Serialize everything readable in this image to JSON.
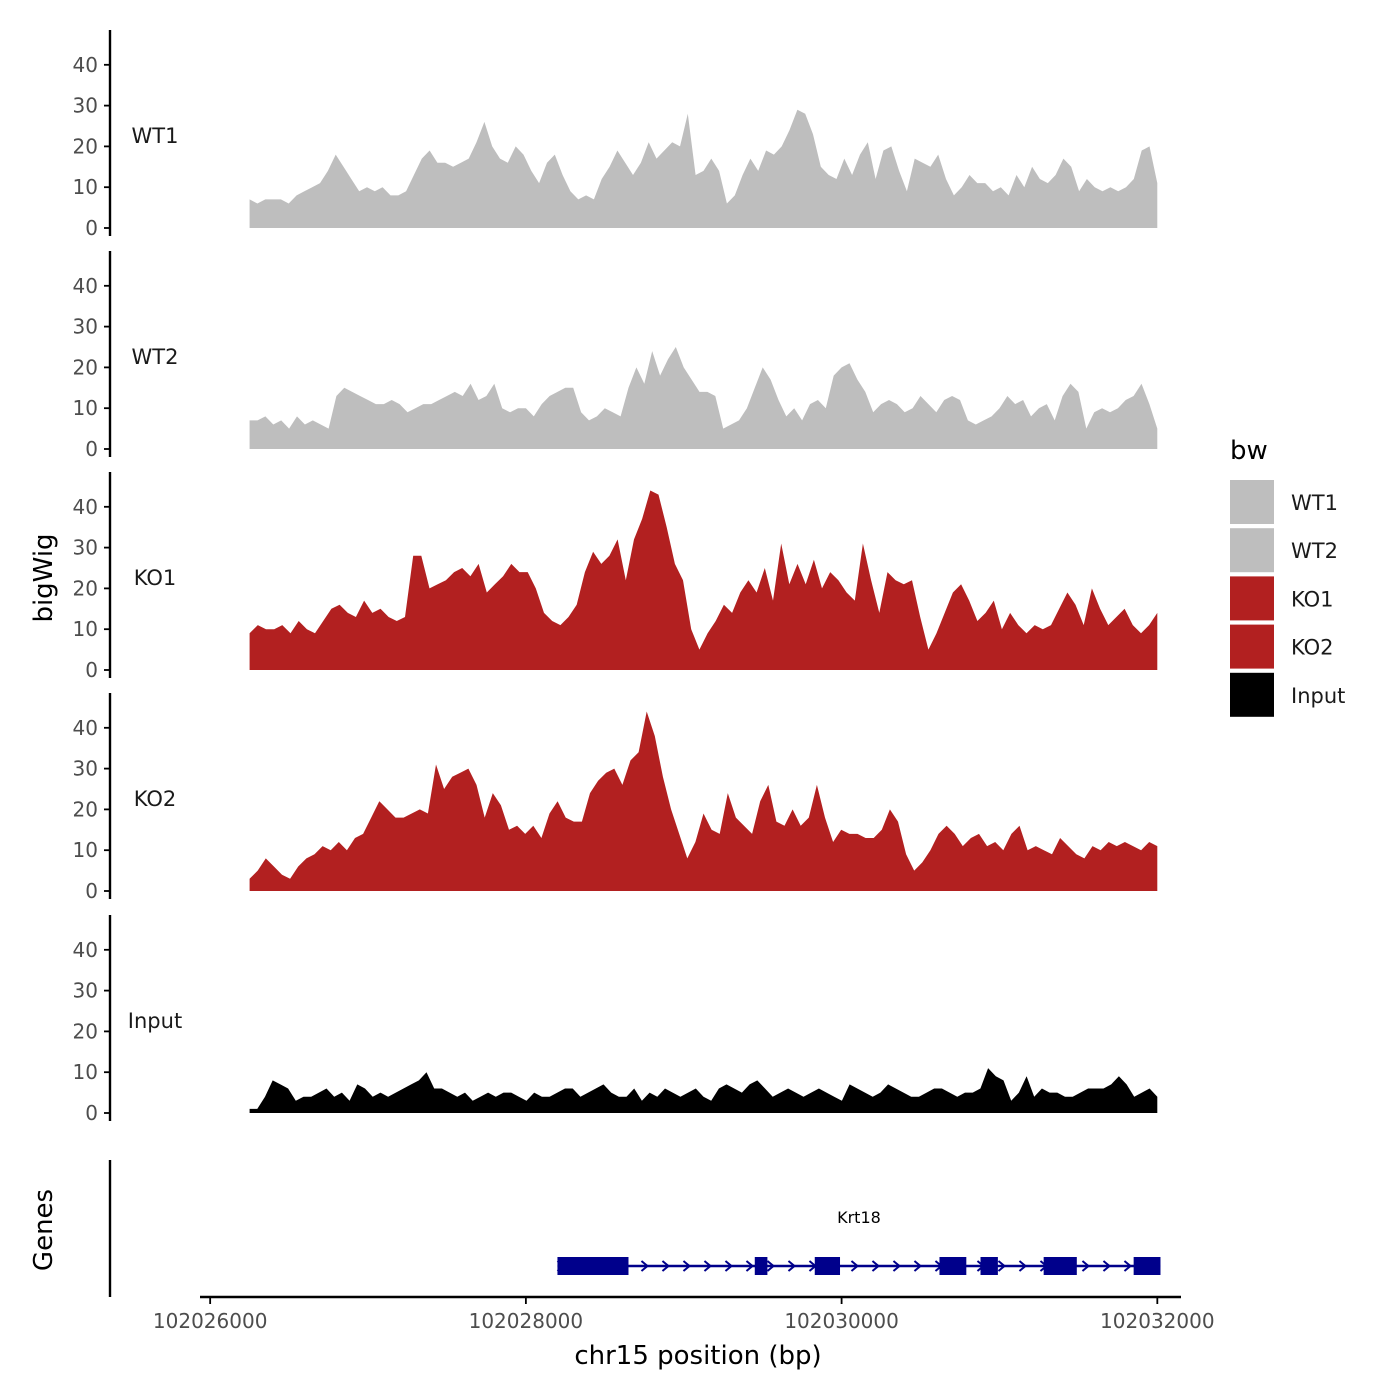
{
  "chart_data": {
    "type": "area",
    "title": "",
    "ylabel": "bigWig",
    "xlabel": "chr15 position (bp)",
    "genes_label": "Genes",
    "xlim": [
      102025980,
      102032150
    ],
    "signal_range": [
      102026250,
      102032000
    ],
    "ylim": [
      0,
      48
    ],
    "y_ticks": [
      {
        "value": 0,
        "label": "0"
      },
      {
        "value": 10,
        "label": "10"
      },
      {
        "value": 20,
        "label": "20"
      },
      {
        "value": 30,
        "label": "30"
      },
      {
        "value": 40,
        "label": "40"
      }
    ],
    "x_ticks": [
      {
        "value": 102026000,
        "label": "102026000"
      },
      {
        "value": 102028000,
        "label": "102028000"
      },
      {
        "value": 102030000,
        "label": "102030000"
      },
      {
        "value": 102032000,
        "label": "102032000"
      }
    ],
    "legend_title": "bw",
    "series": [
      {
        "name": "WT1",
        "color": "#bebebe",
        "values": [
          7,
          6,
          7,
          7,
          7,
          6,
          8,
          9,
          10,
          11,
          14,
          18,
          15,
          12,
          9,
          10,
          9,
          10,
          8,
          8,
          9,
          13,
          17,
          19,
          16,
          16,
          15,
          16,
          17,
          21,
          26,
          20,
          17,
          16,
          20,
          18,
          14,
          11,
          16,
          18,
          13,
          9,
          7,
          8,
          7,
          12,
          15,
          19,
          16,
          13,
          16,
          21,
          17,
          19,
          21,
          20,
          28,
          13,
          14,
          17,
          14,
          6,
          8,
          13,
          17,
          14,
          19,
          18,
          20,
          24,
          29,
          28,
          23,
          15,
          13,
          12,
          17,
          13,
          18,
          21,
          12,
          19,
          20,
          14,
          9,
          17,
          16,
          15,
          18,
          12,
          8,
          10,
          13,
          11,
          11,
          9,
          10,
          8,
          13,
          10,
          15,
          12,
          11,
          13,
          17,
          15,
          9,
          12,
          10,
          9,
          10,
          9,
          10,
          12,
          19,
          20,
          11
        ]
      },
      {
        "name": "WT2",
        "color": "#bebebe",
        "values": [
          7,
          7,
          8,
          6,
          7,
          5,
          8,
          6,
          7,
          6,
          5,
          13,
          15,
          14,
          13,
          12,
          11,
          11,
          12,
          11,
          9,
          10,
          11,
          11,
          12,
          13,
          14,
          13,
          16,
          12,
          13,
          16,
          10,
          9,
          10,
          10,
          8,
          11,
          13,
          14,
          15,
          15,
          9,
          7,
          8,
          10,
          9,
          8,
          15,
          20,
          16,
          24,
          18,
          22,
          25,
          20,
          17,
          14,
          14,
          13,
          5,
          6,
          7,
          10,
          15,
          20,
          17,
          12,
          8,
          10,
          7,
          11,
          12,
          10,
          18,
          20,
          21,
          17,
          14,
          9,
          11,
          12,
          11,
          9,
          10,
          13,
          11,
          9,
          12,
          13,
          12,
          7,
          6,
          7,
          8,
          10,
          13,
          11,
          12,
          8,
          10,
          11,
          7,
          13,
          16,
          14,
          5,
          9,
          10,
          9,
          10,
          12,
          13,
          16,
          11,
          5
        ]
      },
      {
        "name": "KO1",
        "color": "#b22020",
        "values": [
          9,
          11,
          10,
          10,
          11,
          9,
          12,
          10,
          9,
          12,
          15,
          16,
          14,
          13,
          17,
          14,
          15,
          13,
          12,
          13,
          28,
          28,
          20,
          21,
          22,
          24,
          25,
          23,
          26,
          19,
          21,
          23,
          26,
          24,
          24,
          20,
          14,
          12,
          11,
          13,
          16,
          24,
          29,
          26,
          28,
          32,
          22,
          32,
          37,
          44,
          43,
          35,
          26,
          22,
          10,
          5,
          9,
          12,
          16,
          14,
          19,
          22,
          19,
          25,
          17,
          31,
          21,
          26,
          21,
          27,
          20,
          24,
          22,
          19,
          17,
          31,
          22,
          14,
          24,
          22,
          21,
          22,
          13,
          5,
          9,
          14,
          19,
          21,
          17,
          12,
          14,
          17,
          10,
          14,
          11,
          9,
          11,
          10,
          11,
          15,
          19,
          16,
          11,
          20,
          15,
          11,
          13,
          15,
          11,
          9,
          11,
          14
        ]
      },
      {
        "name": "KO2",
        "color": "#b22020",
        "values": [
          3,
          5,
          8,
          6,
          4,
          3,
          6,
          8,
          9,
          11,
          10,
          12,
          10,
          13,
          14,
          18,
          22,
          20,
          18,
          18,
          19,
          20,
          19,
          31,
          25,
          28,
          29,
          30,
          26,
          18,
          24,
          21,
          15,
          16,
          14,
          16,
          13,
          19,
          22,
          18,
          17,
          17,
          24,
          27,
          29,
          30,
          26,
          32,
          34,
          44,
          38,
          28,
          20,
          14,
          8,
          12,
          19,
          15,
          14,
          24,
          18,
          16,
          14,
          22,
          26,
          17,
          16,
          20,
          16,
          18,
          26,
          18,
          12,
          15,
          14,
          14,
          13,
          13,
          15,
          20,
          17,
          9,
          5,
          7,
          10,
          14,
          16,
          14,
          11,
          13,
          14,
          11,
          12,
          10,
          14,
          16,
          10,
          11,
          10,
          9,
          13,
          11,
          9,
          8,
          11,
          10,
          12,
          11,
          12,
          11,
          10,
          12,
          11
        ]
      },
      {
        "name": "Input",
        "color": "#000000",
        "values": [
          1,
          1,
          4,
          8,
          7,
          6,
          3,
          4,
          4,
          5,
          6,
          4,
          5,
          3,
          7,
          6,
          4,
          5,
          4,
          5,
          6,
          7,
          8,
          10,
          6,
          6,
          5,
          4,
          5,
          3,
          4,
          5,
          4,
          5,
          5,
          4,
          3,
          5,
          4,
          4,
          5,
          6,
          6,
          4,
          5,
          6,
          7,
          5,
          4,
          4,
          6,
          3,
          5,
          4,
          6,
          5,
          4,
          5,
          6,
          4,
          3,
          6,
          7,
          6,
          5,
          7,
          8,
          6,
          4,
          5,
          6,
          5,
          4,
          5,
          6,
          5,
          4,
          3,
          7,
          6,
          5,
          4,
          5,
          7,
          6,
          5,
          4,
          4,
          5,
          6,
          6,
          5,
          4,
          5,
          5,
          6,
          11,
          9,
          8,
          3,
          5,
          9,
          4,
          6,
          5,
          5,
          4,
          4,
          5,
          6,
          6,
          6,
          7,
          9,
          7,
          4,
          5,
          6,
          4
        ]
      }
    ],
    "gene": {
      "name": "Krt18",
      "start": 102028200,
      "end": 102032020,
      "strand": "+",
      "exons": [
        [
          102028200,
          102028650
        ],
        [
          102029450,
          102029530
        ],
        [
          102029830,
          102029990
        ],
        [
          102030620,
          102030790
        ],
        [
          102030880,
          102030990
        ],
        [
          102031280,
          102031490
        ],
        [
          102031850,
          102032020
        ]
      ]
    }
  }
}
